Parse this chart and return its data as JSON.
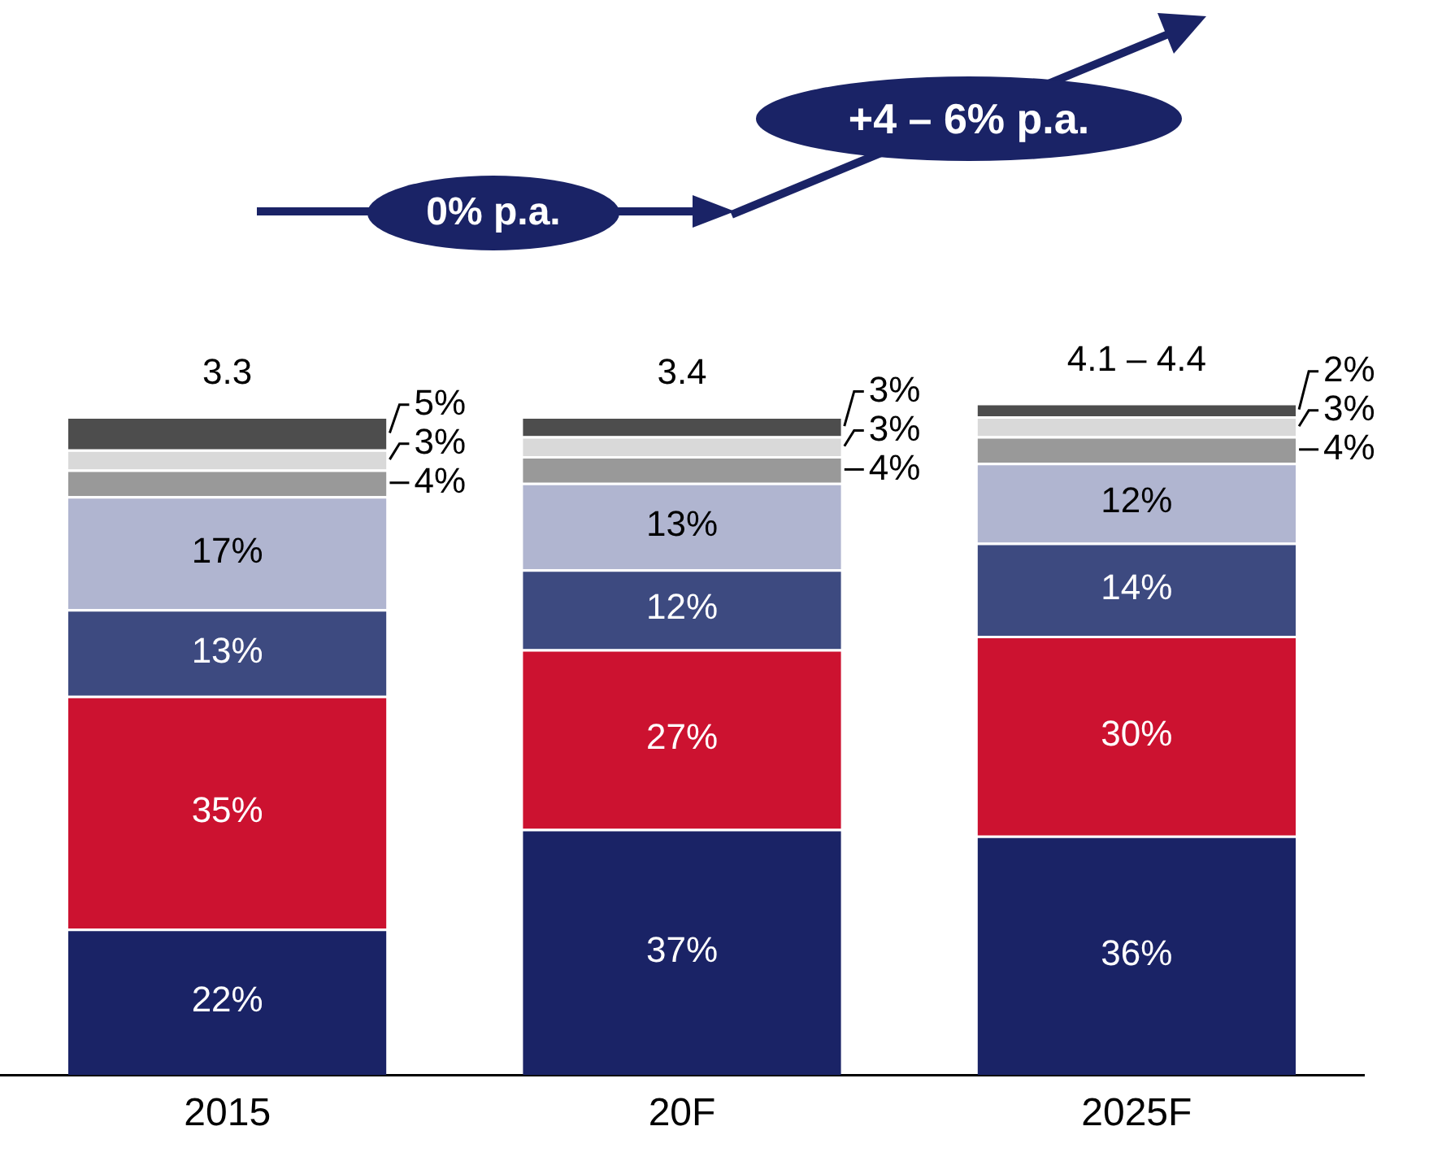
{
  "chart_data": {
    "type": "bar",
    "stacked": true,
    "grid": false,
    "legend": false,
    "categories": [
      "2015",
      "20F",
      "2025F"
    ],
    "series": [
      {
        "color": "#1a2366",
        "values": [
          22,
          37,
          36
        ],
        "value_labels": [
          "22%",
          "37%",
          "36%"
        ]
      },
      {
        "color": "#cc1230",
        "values": [
          35,
          27,
          30
        ],
        "value_labels": [
          "35%",
          "27%",
          "30%"
        ]
      },
      {
        "color": "#3d4a80",
        "values": [
          13,
          12,
          14
        ],
        "value_labels": [
          "13%",
          "12%",
          "14%"
        ]
      },
      {
        "color": "#b0b5d0",
        "values": [
          17,
          13,
          12
        ],
        "value_labels": [
          "17%",
          "13%",
          "12%"
        ]
      },
      {
        "color": "#999999",
        "values": [
          4,
          4,
          4
        ],
        "value_labels": [
          "4%",
          "4%",
          "4%"
        ]
      },
      {
        "color": "#d9d9d9",
        "values": [
          3,
          3,
          3
        ],
        "value_labels": [
          "3%",
          "3%",
          "3%"
        ]
      },
      {
        "color": "#4d4d4d",
        "values": [
          5,
          3,
          2
        ],
        "value_labels": [
          "5%",
          "3%",
          "2%"
        ]
      }
    ],
    "annotations": [
      "0% p.a.",
      "+4 – 6% p.a.",
      "3.3",
      "3.4",
      "4.1 – 4.4"
    ]
  }
}
